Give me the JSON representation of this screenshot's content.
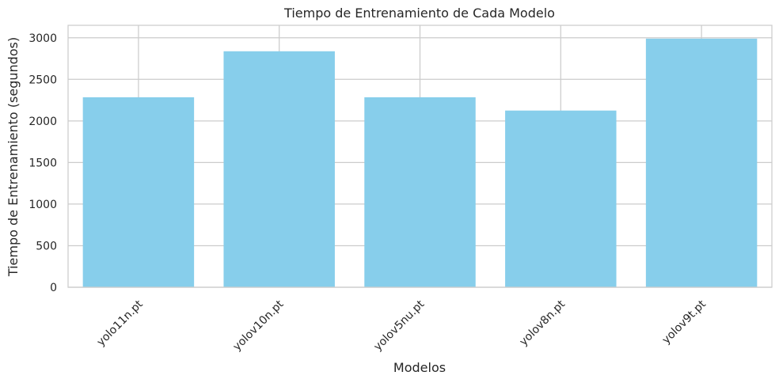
{
  "chart_data": {
    "type": "bar",
    "title": "Tiempo de Entrenamiento de Cada Modelo",
    "xlabel": "Modelos",
    "ylabel": "Tiempo de Entrenamiento (segundos)",
    "categories": [
      "yolo11n.pt",
      "yolov10n.pt",
      "yolov5nu.pt",
      "yolov8n.pt",
      "yolov9t.pt"
    ],
    "values": [
      2285,
      2838,
      2285,
      2125,
      2990
    ],
    "ylim": [
      0,
      3150
    ],
    "yticks": [
      0,
      500,
      1000,
      1500,
      2000,
      2500,
      3000
    ],
    "grid": true,
    "legend": "none",
    "bar_color": "#87ceeb",
    "grid_color": "#cccccc",
    "text_color": "#262626"
  }
}
